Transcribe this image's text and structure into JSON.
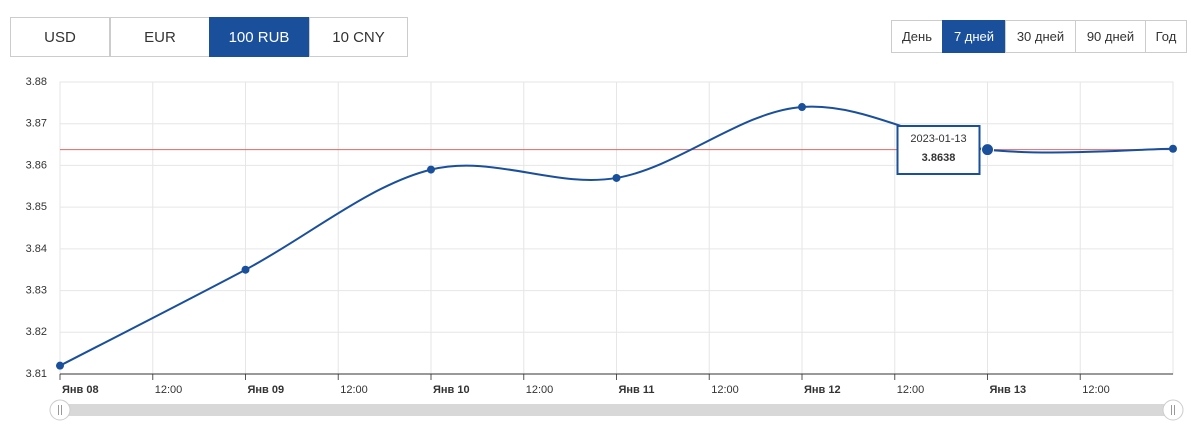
{
  "currencies": [
    {
      "label": "USD",
      "active": false
    },
    {
      "label": "EUR",
      "active": false
    },
    {
      "label": "100 RUB",
      "active": true
    },
    {
      "label": "10 CNY",
      "active": false
    }
  ],
  "periods": [
    {
      "label": "День",
      "active": false
    },
    {
      "label": "7 дней",
      "active": true
    },
    {
      "label": "30 дней",
      "active": false
    },
    {
      "label": "90 дней",
      "active": false
    },
    {
      "label": "Год",
      "active": false
    }
  ],
  "chart_data": {
    "type": "line",
    "x": [
      0,
      24,
      48,
      72,
      96,
      120,
      144
    ],
    "series": [
      {
        "color": "#1a4f9c",
        "values": [
          3.812,
          3.835,
          3.859,
          3.857,
          3.874,
          3.8638,
          3.864
        ]
      }
    ],
    "xlim": [
      0,
      144
    ],
    "xticks": [
      {
        "value": 0,
        "label": "Янв 08"
      },
      {
        "value": 12,
        "label": "12:00"
      },
      {
        "value": 24,
        "label": "Янв 09"
      },
      {
        "value": 36,
        "label": "12:00"
      },
      {
        "value": 48,
        "label": "Янв 10"
      },
      {
        "value": 60,
        "label": "12:00"
      },
      {
        "value": 72,
        "label": "Янв 11"
      },
      {
        "value": 84,
        "label": "12:00"
      },
      {
        "value": 96,
        "label": "Янв 12"
      },
      {
        "value": 108,
        "label": "12:00"
      },
      {
        "value": 120,
        "label": "Янв 13"
      },
      {
        "value": 132,
        "label": "12:00"
      }
    ],
    "ylim": [
      3.81,
      3.88
    ],
    "yticks": [
      3.81,
      3.82,
      3.83,
      3.84,
      3.85,
      3.86,
      3.87,
      3.88
    ],
    "grid": true,
    "tooltip": {
      "date": "2023-01-13",
      "value": 3.8638,
      "x": 120,
      "line_color": "#e06666"
    }
  }
}
